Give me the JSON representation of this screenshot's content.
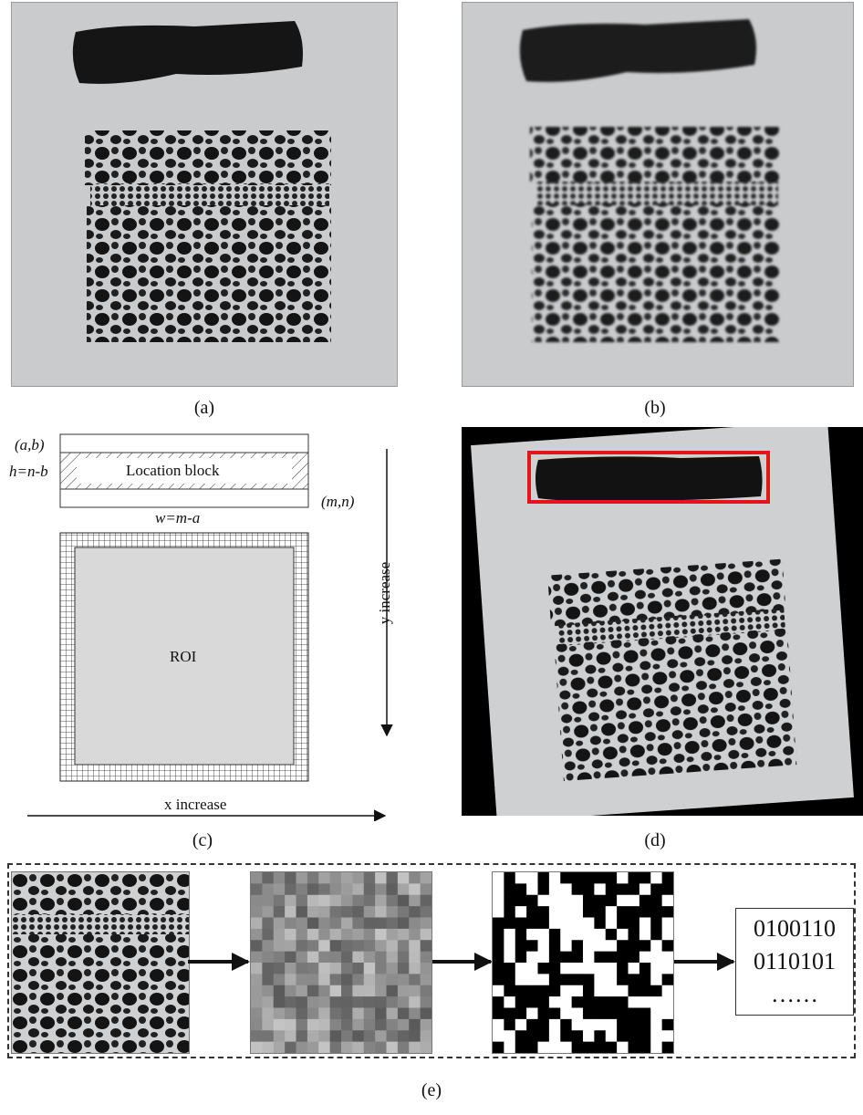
{
  "captions": {
    "a": "(a)",
    "b": "(b)",
    "c": "(c)",
    "d": "(d)",
    "e": "(e)"
  },
  "diagram": {
    "corner_top_left": "(a,b)",
    "height_label": "h=n-b",
    "block_label": "Location block",
    "corner_bottom_right": "(m,n)",
    "width_label": "w=m-a",
    "roi_label": "ROI",
    "y_axis_label": "y increase",
    "x_axis_label": "x increase"
  },
  "binary_code": {
    "line1": "0100110",
    "line2": "0110101",
    "line3": "……"
  },
  "colors": {
    "photo_bg": "#c9cbcd",
    "roi_fill": "#d9d9d9",
    "detection_box": "#e0161b",
    "blob": "#141414"
  }
}
